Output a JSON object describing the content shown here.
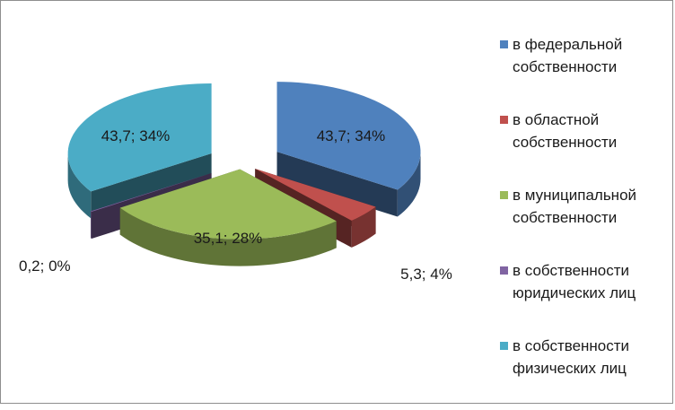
{
  "chart_data": {
    "type": "pie",
    "style": "3d-exploded",
    "legend_position": "right",
    "slices": [
      {
        "legend_label": "в федеральной собственности",
        "value": 43.7,
        "percent": 34,
        "data_label": "43,7; 34%",
        "color": "#4f81bd"
      },
      {
        "legend_label": "в областной собственности",
        "value": 5.3,
        "percent": 4,
        "data_label": "5,3; 4%",
        "color": "#c0504d"
      },
      {
        "legend_label": "в муниципальной собственности",
        "value": 35.1,
        "percent": 28,
        "data_label": "35,1; 28%",
        "color": "#9bbb59"
      },
      {
        "legend_label": "в собственности юридических лиц",
        "value": 0.2,
        "percent": 0,
        "data_label": "0,2; 0%",
        "color": "#8064a2"
      },
      {
        "legend_label": "в собственности физических лиц",
        "value": 43.7,
        "percent": 34,
        "data_label": "43,7; 34%",
        "color": "#4bacc6"
      }
    ]
  }
}
